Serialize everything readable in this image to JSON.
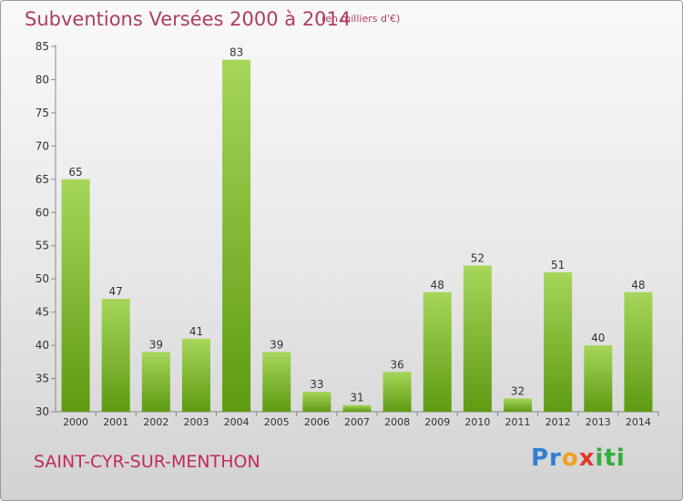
{
  "header": {
    "title": "Subventions Versées 2000 à 2014",
    "subtitle": "(en milliers d'€)"
  },
  "footer": {
    "commune": "SAINT-CYR-SUR-MENTHON",
    "logo": [
      "Pr",
      "o",
      "x",
      "iti"
    ]
  },
  "colors": {
    "title": "#b03d5c",
    "bar_top": "#a6d65a",
    "bar_bottom": "#5e9a12"
  },
  "chart_data": {
    "type": "bar",
    "title": "Subventions Versées 2000 à 2014",
    "subtitle": "(en milliers d'€)",
    "categories": [
      "2000",
      "2001",
      "2002",
      "2003",
      "2004",
      "2005",
      "2006",
      "2007",
      "2008",
      "2009",
      "2010",
      "2011",
      "2012",
      "2013",
      "2014"
    ],
    "values": [
      65,
      47,
      39,
      41,
      83,
      39,
      33,
      31,
      36,
      48,
      52,
      32,
      51,
      40,
      48
    ],
    "ylim": [
      30,
      85
    ],
    "yticks": [
      30,
      35,
      40,
      45,
      50,
      55,
      60,
      65,
      70,
      75,
      80,
      85
    ],
    "xlabel": "",
    "ylabel": "",
    "grid": false,
    "data_labels": true
  }
}
